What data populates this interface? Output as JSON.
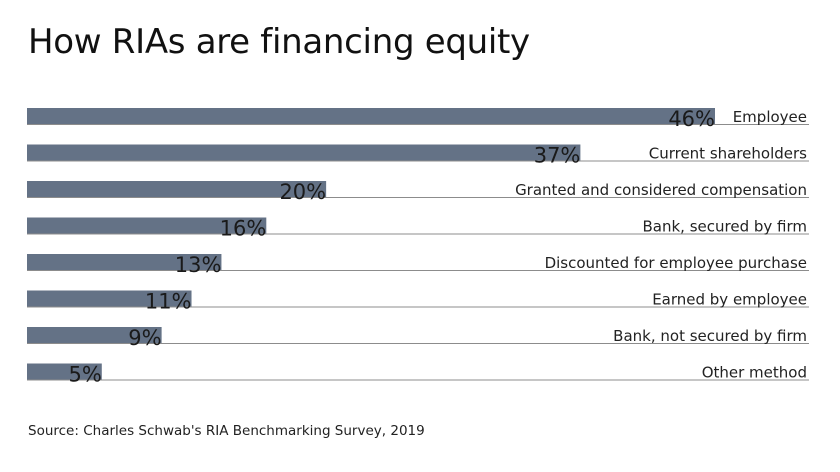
{
  "title": "How RIAs are financing equity",
  "source": "Source: Charles Schwab's RIA Benchmarking Survey, 2019",
  "colors": {
    "bar": "#647286",
    "rule": "#8c8c8c"
  },
  "chart_data": {
    "type": "bar",
    "orientation": "horizontal",
    "title": "How RIAs are financing equity",
    "categories": [
      "Employee",
      "Current shareholders",
      "Granted and considered compensation",
      "Bank, secured by firm",
      "Discounted for employee purchase",
      "Earned by employee",
      "Bank, not secured by firm",
      "Other method"
    ],
    "values": [
      46,
      37,
      20,
      16,
      13,
      11,
      9,
      5
    ],
    "value_labels": [
      "46%",
      "37%",
      "20%",
      "16%",
      "13%",
      "11%",
      "9%",
      "5%"
    ],
    "unit": "%",
    "xlim": [
      0,
      46
    ],
    "grid": false,
    "legend": "none"
  }
}
